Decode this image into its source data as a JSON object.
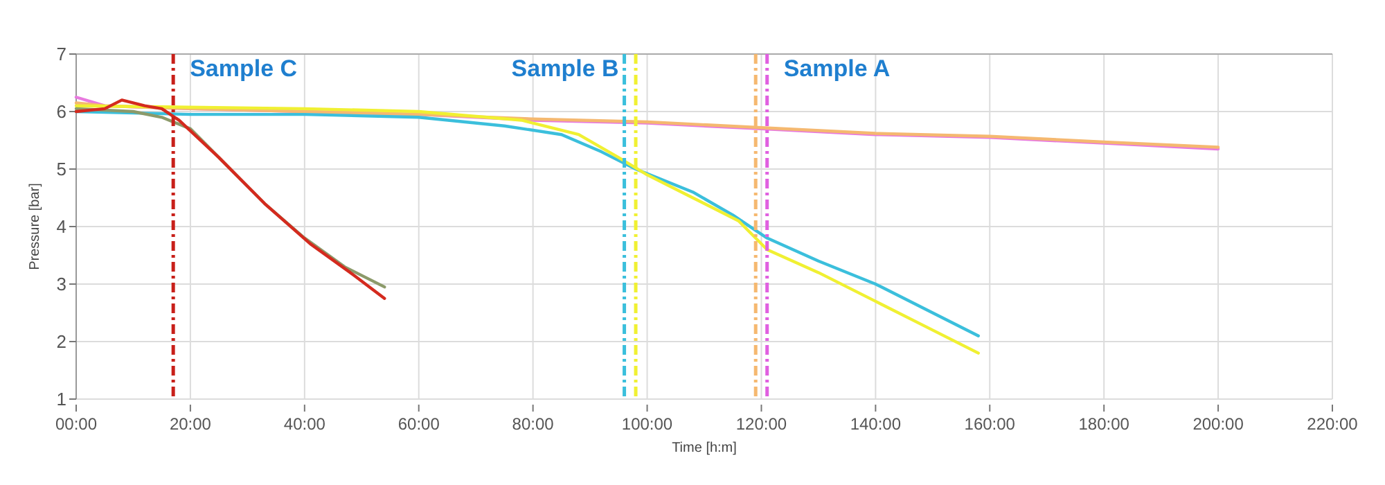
{
  "chart_data": {
    "type": "line",
    "xlabel": "Time [h:m]",
    "ylabel": "Pressure [bar]",
    "xlim": [
      0,
      220
    ],
    "ylim": [
      1,
      7
    ],
    "xticks": [
      {
        "value": 0,
        "label": "00:00"
      },
      {
        "value": 20,
        "label": "20:00"
      },
      {
        "value": 40,
        "label": "40:00"
      },
      {
        "value": 60,
        "label": "60:00"
      },
      {
        "value": 80,
        "label": "80:00"
      },
      {
        "value": 100,
        "label": "100:00"
      },
      {
        "value": 120,
        "label": "120:00"
      },
      {
        "value": 140,
        "label": "140:00"
      },
      {
        "value": 160,
        "label": "160:00"
      },
      {
        "value": 180,
        "label": "180:00"
      },
      {
        "value": 200,
        "label": "200:00"
      },
      {
        "value": 220,
        "label": "220:00"
      }
    ],
    "yticks": [
      1,
      2,
      3,
      4,
      5,
      6,
      7
    ],
    "grid": true,
    "marker": "none",
    "line_style": "solid",
    "series": [
      {
        "color": "#e87adf",
        "x": [
          0,
          5,
          20,
          40,
          60,
          80,
          100,
          120,
          140,
          160,
          180,
          200
        ],
        "values": [
          6.25,
          6.1,
          6.05,
          6.0,
          5.95,
          5.85,
          5.8,
          5.7,
          5.6,
          5.55,
          5.45,
          5.35
        ]
      },
      {
        "color": "#f5b870",
        "x": [
          0,
          5,
          20,
          40,
          60,
          80,
          100,
          120,
          140,
          160,
          180,
          200
        ],
        "values": [
          6.15,
          6.1,
          6.05,
          6.0,
          5.95,
          5.87,
          5.82,
          5.72,
          5.62,
          5.57,
          5.47,
          5.38
        ]
      },
      {
        "color": "#3bbfdc",
        "x": [
          0,
          20,
          40,
          60,
          75,
          85,
          92,
          98,
          108,
          115,
          121,
          130,
          140,
          150,
          158
        ],
        "values": [
          6.0,
          5.95,
          5.95,
          5.9,
          5.75,
          5.6,
          5.3,
          5.0,
          4.6,
          4.2,
          3.8,
          3.4,
          3.0,
          2.5,
          2.1
        ]
      },
      {
        "color": "#f0f032",
        "x": [
          0,
          40,
          60,
          78,
          88,
          95,
          100,
          108,
          116,
          121,
          130,
          140,
          148,
          158
        ],
        "values": [
          6.1,
          6.05,
          6.0,
          5.85,
          5.6,
          5.2,
          4.9,
          4.5,
          4.1,
          3.6,
          3.2,
          2.7,
          2.3,
          1.8
        ]
      },
      {
        "color": "#8c9a6a",
        "x": [
          0,
          10,
          15,
          20,
          25,
          33,
          40,
          47,
          54
        ],
        "values": [
          6.05,
          6.0,
          5.9,
          5.7,
          5.2,
          4.4,
          3.8,
          3.3,
          2.95
        ]
      },
      {
        "color": "#d42a1e",
        "x": [
          0,
          5,
          8,
          12,
          15,
          18,
          25,
          33,
          41,
          48,
          54
        ],
        "values": [
          6.0,
          6.05,
          6.2,
          6.1,
          6.05,
          5.85,
          5.2,
          4.4,
          3.7,
          3.2,
          2.75
        ]
      }
    ],
    "ref_lines": [
      {
        "axis": "x",
        "value": 17,
        "color": "#c8201a",
        "line_style": "dashed",
        "label": "Sample C"
      },
      {
        "axis": "x",
        "value": 96,
        "color": "#3bbfdc",
        "line_style": "dashed",
        "label": "Sample B"
      },
      {
        "axis": "x",
        "value": 98,
        "color": "#f0f032",
        "line_style": "dashed"
      },
      {
        "axis": "x",
        "value": 119,
        "color": "#f5b870",
        "line_style": "dashed"
      },
      {
        "axis": "x",
        "value": 121,
        "color": "#e060e0",
        "line_style": "dashed",
        "label": "Sample A"
      }
    ]
  }
}
